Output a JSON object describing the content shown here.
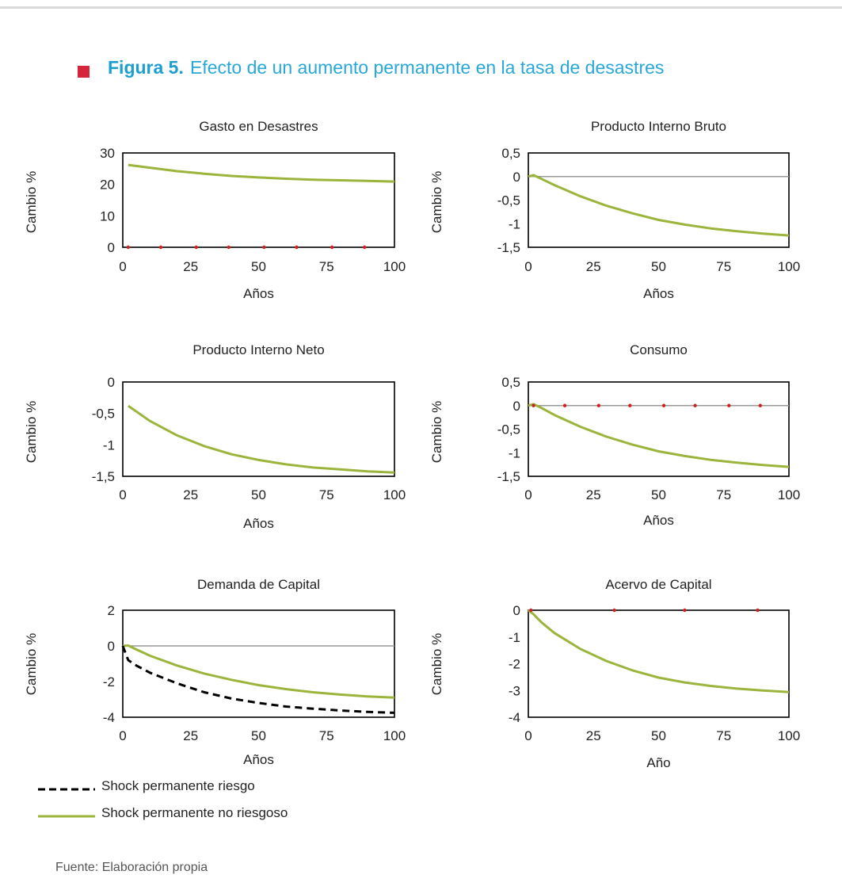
{
  "figure": {
    "label": "Figura 5.",
    "title": "Efecto de un aumento permanente en la tasa de desastres",
    "source": "Fuente: Elaboración propia"
  },
  "colors": {
    "accent_square": "#d6253b",
    "title_blue": "#28a8d8",
    "series_no_riesgoso": "#9bb53c",
    "series_riesgo": "#000000",
    "marker_red": "#d21f1f",
    "zero_line": "#999999"
  },
  "legend": {
    "items": [
      {
        "label": "Shock permanente riesgo",
        "style": "dashed"
      },
      {
        "label": "Shock permanente no riesgoso",
        "style": "solid"
      }
    ]
  },
  "chart_data": [
    {
      "type": "line",
      "title": "Gasto en Desastres",
      "xlabel": "Años",
      "ylabel": "Cambio %",
      "xlim": [
        0,
        100
      ],
      "ylim": [
        0,
        30
      ],
      "xticks": [
        0,
        25,
        50,
        75,
        100
      ],
      "yticks": [
        0,
        10,
        20,
        30
      ],
      "ytick_labels": [
        "0",
        "10",
        "20",
        "30"
      ],
      "zero_line": false,
      "series": [
        {
          "style": "solid",
          "x": [
            2,
            10,
            20,
            30,
            40,
            50,
            60,
            70,
            80,
            90,
            100
          ],
          "y": [
            26.2,
            25.3,
            24.2,
            23.4,
            22.7,
            22.2,
            21.8,
            21.5,
            21.3,
            21.1,
            20.9
          ]
        }
      ],
      "markers": {
        "x": [
          2,
          14,
          27,
          39,
          52,
          64,
          77,
          89
        ],
        "y": 0
      }
    },
    {
      "type": "line",
      "title": "Producto Interno Bruto",
      "xlabel": "Años",
      "ylabel": "Cambio %",
      "xlim": [
        0,
        100
      ],
      "ylim": [
        -1.5,
        0.5
      ],
      "xticks": [
        0,
        25,
        50,
        75,
        100
      ],
      "yticks": [
        0.5,
        0,
        -0.5,
        -1,
        -1.5
      ],
      "ytick_labels": [
        "0,5",
        "0",
        "-0,5",
        "-1",
        "-1,5"
      ],
      "zero_line": true,
      "series": [
        {
          "style": "solid",
          "x": [
            0,
            2,
            5,
            10,
            20,
            30,
            40,
            50,
            60,
            70,
            80,
            90,
            100
          ],
          "y": [
            0,
            0.03,
            -0.05,
            -0.18,
            -0.42,
            -0.62,
            -0.78,
            -0.92,
            -1.02,
            -1.1,
            -1.16,
            -1.21,
            -1.25
          ]
        }
      ]
    },
    {
      "type": "line",
      "title": "Producto Interno Neto",
      "xlabel": "Años",
      "ylabel": "Cambio %",
      "xlim": [
        0,
        100
      ],
      "ylim": [
        -1.5,
        0
      ],
      "xticks": [
        0,
        25,
        50,
        75,
        100
      ],
      "yticks": [
        0,
        -0.5,
        -1,
        -1.5
      ],
      "ytick_labels": [
        "0",
        "-0,5",
        "-1",
        "-1,5"
      ],
      "zero_line": false,
      "series": [
        {
          "style": "solid",
          "x": [
            2,
            10,
            20,
            30,
            40,
            50,
            60,
            70,
            80,
            90,
            100
          ],
          "y": [
            -0.38,
            -0.62,
            -0.85,
            -1.02,
            -1.15,
            -1.24,
            -1.31,
            -1.36,
            -1.39,
            -1.42,
            -1.44
          ]
        }
      ]
    },
    {
      "type": "line",
      "title": "Consumo",
      "xlabel": "Años",
      "ylabel": "Cambio %",
      "xlim": [
        0,
        100
      ],
      "ylim": [
        -1.5,
        0.5
      ],
      "xticks": [
        0,
        25,
        50,
        75,
        100
      ],
      "yticks": [
        0.5,
        0,
        -0.5,
        -1,
        -1.5
      ],
      "ytick_labels": [
        "0,5",
        "0",
        "-0,5",
        "-1",
        "-1,5"
      ],
      "zero_line": true,
      "series": [
        {
          "style": "solid",
          "x": [
            0,
            2,
            5,
            10,
            20,
            30,
            40,
            50,
            60,
            70,
            80,
            90,
            100
          ],
          "y": [
            0,
            0.03,
            -0.05,
            -0.2,
            -0.45,
            -0.66,
            -0.83,
            -0.97,
            -1.07,
            -1.15,
            -1.21,
            -1.26,
            -1.3
          ]
        }
      ],
      "markers": {
        "x": [
          2,
          14,
          27,
          39,
          52,
          64,
          77,
          89
        ],
        "y": 0
      }
    },
    {
      "type": "line",
      "title": "Demanda de Capital",
      "xlabel": "Años",
      "ylabel": "Cambio %",
      "xlim": [
        0,
        100
      ],
      "ylim": [
        -4,
        2
      ],
      "xticks": [
        0,
        25,
        50,
        75,
        100
      ],
      "yticks": [
        2,
        0,
        -2,
        -4
      ],
      "ytick_labels": [
        "2",
        "0",
        "-2",
        "-4"
      ],
      "zero_line": true,
      "series": [
        {
          "style": "solid",
          "x": [
            0,
            2,
            5,
            10,
            20,
            30,
            40,
            50,
            60,
            70,
            80,
            90,
            100
          ],
          "y": [
            0,
            0.02,
            -0.2,
            -0.55,
            -1.1,
            -1.55,
            -1.9,
            -2.2,
            -2.42,
            -2.6,
            -2.73,
            -2.83,
            -2.9
          ]
        },
        {
          "style": "dashed",
          "x": [
            0,
            1,
            2,
            5,
            10,
            20,
            30,
            40,
            50,
            60,
            70,
            80,
            90,
            100
          ],
          "y": [
            0,
            -0.4,
            -0.8,
            -1.1,
            -1.5,
            -2.1,
            -2.6,
            -2.95,
            -3.2,
            -3.4,
            -3.52,
            -3.62,
            -3.7,
            -3.75
          ]
        }
      ]
    },
    {
      "type": "line",
      "title": "Acervo de Capital",
      "xlabel": "Año",
      "ylabel": "Cambio %",
      "xlim": [
        0,
        100
      ],
      "ylim": [
        -4,
        0
      ],
      "xticks": [
        0,
        25,
        50,
        75,
        100
      ],
      "yticks": [
        0,
        -1,
        -2,
        -3,
        -4
      ],
      "ytick_labels": [
        "0",
        "-1",
        "-2",
        "-3",
        "-4"
      ],
      "zero_line": false,
      "series": [
        {
          "style": "solid",
          "x": [
            0,
            2,
            5,
            10,
            20,
            30,
            40,
            50,
            60,
            70,
            80,
            90,
            100
          ],
          "y": [
            0,
            -0.15,
            -0.45,
            -0.85,
            -1.45,
            -1.9,
            -2.25,
            -2.52,
            -2.7,
            -2.83,
            -2.93,
            -3.0,
            -3.06
          ]
        }
      ],
      "markers": {
        "x": [
          1,
          33,
          60,
          88
        ],
        "y": 0
      }
    }
  ]
}
